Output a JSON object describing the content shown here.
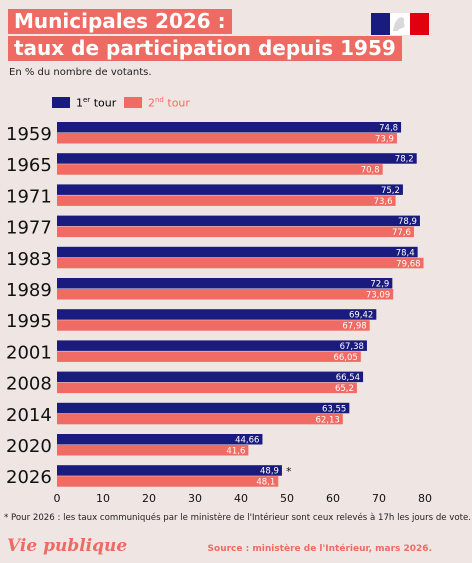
{
  "title": {
    "line1": "Municipales 2026 :",
    "line2": "taux de participation depuis 1959"
  },
  "subtitle": "En % du nombre de votants.",
  "legend": {
    "tour1": {
      "base": "1",
      "sup": "er",
      "rest": "tour"
    },
    "tour2": {
      "base": "2",
      "sup": "nd",
      "rest": "tour"
    }
  },
  "colors": {
    "tour1": "#1a1b7e",
    "tour2": "#f06b63",
    "background": "#efe6e4",
    "accent": "#ef6a63"
  },
  "chart_data": {
    "type": "bar",
    "orientation": "horizontal",
    "categories": [
      "1959",
      "1965",
      "1971",
      "1977",
      "1983",
      "1989",
      "1995",
      "2001",
      "2008",
      "2014",
      "2020",
      "2026"
    ],
    "series": [
      {
        "name": "1er tour",
        "values": [
          74.8,
          78.2,
          75.2,
          78.9,
          78.4,
          72.9,
          69.42,
          67.38,
          66.54,
          63.55,
          44.66,
          48.9
        ],
        "labels": [
          "74,8",
          "78,2",
          "75,2",
          "78,9",
          "78,4",
          "72,9",
          "69,42",
          "67,38",
          "66,54",
          "63,55",
          "44,66",
          "48,9"
        ]
      },
      {
        "name": "2nd tour",
        "values": [
          73.9,
          70.8,
          73.6,
          77.6,
          79.68,
          73.09,
          67.98,
          66.05,
          65.2,
          62.13,
          41.6,
          48.1
        ],
        "labels": [
          "73,9",
          "70,8",
          "73,6",
          "77,6",
          "79,68",
          "73,09",
          "67,98",
          "66,05",
          "65,2",
          "62,13",
          "41,6",
          "48,1"
        ]
      }
    ],
    "xlim": [
      0,
      80
    ],
    "xticks": [
      "0",
      "10",
      "20",
      "30",
      "40",
      "50",
      "60",
      "70",
      "80"
    ],
    "grid": false,
    "annotation": "*"
  },
  "footnote": "* Pour 2026 : les taux communiqués par le ministère de l'Intérieur sont ceux relevés à 17h les jours de vote.",
  "brand": "Vie publique",
  "source": "Source : ministère de l'Intérieur, mars 2026."
}
